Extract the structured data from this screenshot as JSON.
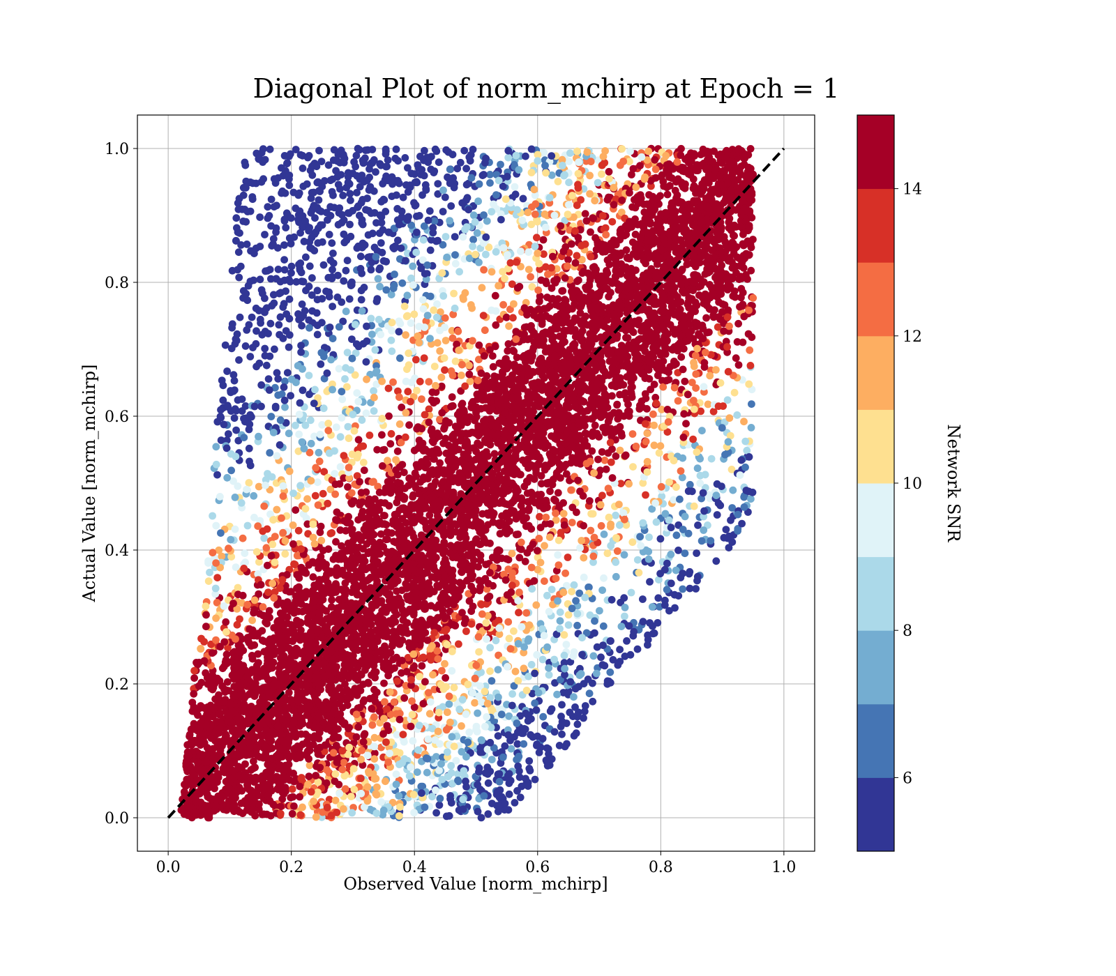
{
  "chart_data": {
    "type": "scatter",
    "title": "Diagonal Plot of norm_mchirp at Epoch = 1",
    "xlabel": "Observed Value [norm_mchirp]",
    "ylabel": "Actual Value [norm_mchirp]",
    "xlim": [
      -0.05,
      1.05
    ],
    "ylim": [
      -0.05,
      1.05
    ],
    "xticks": [
      "0.0",
      "0.2",
      "0.4",
      "0.6",
      "0.8",
      "1.0"
    ],
    "yticks": [
      "0.0",
      "0.2",
      "0.4",
      "0.6",
      "0.8",
      "1.0"
    ],
    "grid": true,
    "reference_line": {
      "style": "dashed",
      "color": "#000000",
      "from": [
        0,
        0
      ],
      "to": [
        1,
        1
      ]
    },
    "colorbar": {
      "label": "Network SNR",
      "range": [
        5,
        15
      ],
      "ticks": [
        "6",
        "8",
        "10",
        "12",
        "14"
      ],
      "colors": [
        "#313695",
        "#4575b4",
        "#74add1",
        "#abd9e9",
        "#e0f3f8",
        "#fee090",
        "#fdae61",
        "#f46d43",
        "#d73027",
        "#a50026"
      ]
    },
    "point_distribution": {
      "observed_range": [
        0.02,
        0.95
      ],
      "actual_range": [
        0.0,
        1.0
      ],
      "high_snr_band_halfwidth": 0.15
    }
  }
}
